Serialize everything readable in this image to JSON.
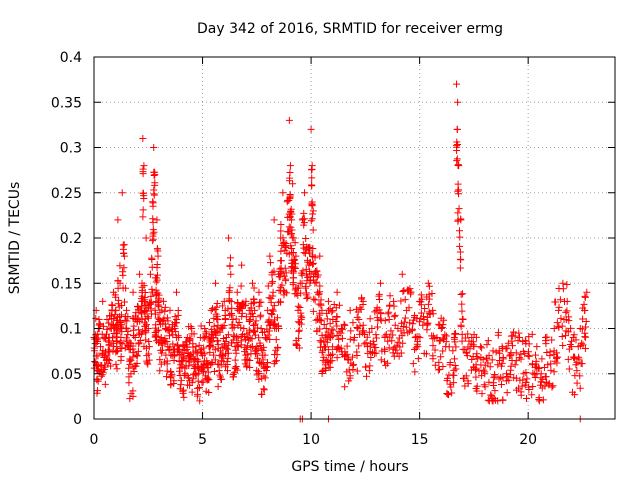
{
  "chart_data": {
    "type": "scatter",
    "title": "Day 342 of 2016, SRMTID for receiver ermg",
    "xlabel": "GPS time / hours",
    "ylabel": "SRMTID / TECUs",
    "xlim": [
      0,
      24
    ],
    "ylim": [
      0,
      0.4
    ],
    "xticks": [
      0,
      5,
      10,
      15,
      20
    ],
    "xtick_labels": [
      "0",
      "5",
      "10",
      "15",
      "20"
    ],
    "yticks": [
      0,
      0.05,
      0.1,
      0.15,
      0.2,
      0.25,
      0.3,
      0.35,
      0.4
    ],
    "ytick_labels": [
      "0",
      "0.05",
      "0.1",
      "0.15",
      "0.2",
      "0.25",
      "0.3",
      "0.35",
      "0.4"
    ],
    "grid": true,
    "marker": "plus",
    "color": "#ff0000",
    "series": [
      {
        "name": "SRMTID",
        "description": "representative sample of the dense point cloud (hour, TECU)",
        "x": [
          0.0,
          0.1,
          0.15,
          0.2,
          0.3,
          0.4,
          0.5,
          0.6,
          0.7,
          0.8,
          0.9,
          1.0,
          1.05,
          1.1,
          1.2,
          1.25,
          1.3,
          1.4,
          1.5,
          1.6,
          1.7,
          1.8,
          1.9,
          2.0,
          2.1,
          2.2,
          2.25,
          2.3,
          2.35,
          2.4,
          2.5,
          2.6,
          2.7,
          2.75,
          2.8,
          2.85,
          2.9,
          2.95,
          3.0,
          3.1,
          3.2,
          3.3,
          3.4,
          3.5,
          3.6,
          3.7,
          3.8,
          3.9,
          4.0,
          4.1,
          4.2,
          4.3,
          4.4,
          4.5,
          4.6,
          4.7,
          4.8,
          4.9,
          5.0,
          5.1,
          5.2,
          5.3,
          5.4,
          5.5,
          5.6,
          5.7,
          5.8,
          5.9,
          6.0,
          6.1,
          6.2,
          6.3,
          6.4,
          6.5,
          6.6,
          6.7,
          6.8,
          6.9,
          7.0,
          7.1,
          7.2,
          7.3,
          7.4,
          7.5,
          7.6,
          7.7,
          7.8,
          7.9,
          8.0,
          8.1,
          8.2,
          8.3,
          8.4,
          8.5,
          8.6,
          8.7,
          8.8,
          8.9,
          9.0,
          9.05,
          9.1,
          9.15,
          9.2,
          9.3,
          9.4,
          9.5,
          9.6,
          9.7,
          9.8,
          9.9,
          10.0,
          10.05,
          10.1,
          10.2,
          10.3,
          10.4,
          10.5,
          10.6,
          10.7,
          10.8,
          10.9,
          11.0,
          11.2,
          11.4,
          11.6,
          11.8,
          12.0,
          12.2,
          12.4,
          12.6,
          12.8,
          13.0,
          13.2,
          13.4,
          13.6,
          13.8,
          14.0,
          14.2,
          14.4,
          14.6,
          14.8,
          15.0,
          15.2,
          15.4,
          15.6,
          15.8,
          16.0,
          16.2,
          16.4,
          16.6,
          16.7,
          16.75,
          16.8,
          16.9,
          17.0,
          17.2,
          17.4,
          17.6,
          17.8,
          18.0,
          18.2,
          18.4,
          18.6,
          18.8,
          19.0,
          19.2,
          19.4,
          19.6,
          19.8,
          20.0,
          20.2,
          20.4,
          20.6,
          20.8,
          21.0,
          21.2,
          21.4,
          21.6,
          21.8,
          22.0,
          22.2,
          22.4,
          22.6,
          22.7
        ],
        "y": [
          0.09,
          0.12,
          0.06,
          0.1,
          0.08,
          0.13,
          0.07,
          0.11,
          0.09,
          0.1,
          0.14,
          0.12,
          0.08,
          0.22,
          0.15,
          0.1,
          0.25,
          0.18,
          0.12,
          0.08,
          0.05,
          0.14,
          0.09,
          0.11,
          0.16,
          0.13,
          0.31,
          0.28,
          0.12,
          0.2,
          0.1,
          0.16,
          0.24,
          0.3,
          0.27,
          0.13,
          0.22,
          0.18,
          0.11,
          0.09,
          0.13,
          0.1,
          0.08,
          0.12,
          0.07,
          0.1,
          0.14,
          0.09,
          0.06,
          0.08,
          0.05,
          0.09,
          0.07,
          0.1,
          0.06,
          0.08,
          0.05,
          0.09,
          0.07,
          0.1,
          0.06,
          0.08,
          0.12,
          0.09,
          0.15,
          0.11,
          0.07,
          0.1,
          0.13,
          0.09,
          0.2,
          0.16,
          0.11,
          0.08,
          0.14,
          0.12,
          0.17,
          0.1,
          0.13,
          0.09,
          0.11,
          0.15,
          0.12,
          0.08,
          0.14,
          0.1,
          0.06,
          0.09,
          0.12,
          0.18,
          0.15,
          0.22,
          0.1,
          0.16,
          0.2,
          0.25,
          0.19,
          0.24,
          0.33,
          0.28,
          0.22,
          0.26,
          0.2,
          0.18,
          0.12,
          0.15,
          0.22,
          0.25,
          0.19,
          0.17,
          0.32,
          0.28,
          0.23,
          0.16,
          0.14,
          0.18,
          0.12,
          0.08,
          0.1,
          0.13,
          0.09,
          0.11,
          0.14,
          0.1,
          0.07,
          0.12,
          0.09,
          0.11,
          0.13,
          0.08,
          0.1,
          0.12,
          0.15,
          0.09,
          0.11,
          0.13,
          0.1,
          0.16,
          0.12,
          0.14,
          0.09,
          0.13,
          0.11,
          0.15,
          0.12,
          0.09,
          0.1,
          0.08,
          0.06,
          0.09,
          0.37,
          0.35,
          0.28,
          0.22,
          0.11,
          0.07,
          0.09,
          0.06,
          0.08,
          0.05,
          0.07,
          0.04,
          0.06,
          0.08,
          0.05,
          0.07,
          0.06,
          0.09,
          0.05,
          0.07,
          0.06,
          0.08,
          0.05,
          0.09,
          0.07,
          0.1,
          0.12,
          0.15,
          0.13,
          0.08,
          0.06,
          0.1,
          0.12,
          0.14
        ]
      }
    ],
    "low_markers": {
      "description": "clustered markers on the zero line",
      "x": [
        9.5,
        9.6,
        10.8,
        22.4
      ],
      "y": [
        0,
        0,
        0,
        0
      ]
    }
  }
}
